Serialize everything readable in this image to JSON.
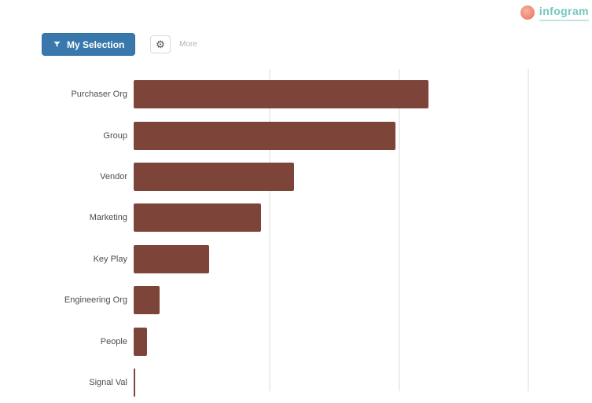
{
  "logo": {
    "text": "infogram",
    "icon": "coral-circle",
    "teal": "#72c8be",
    "coral": "#ef8572"
  },
  "toolbar": {
    "primary_button": {
      "label": "My Selection",
      "icon": "filter-icon",
      "color": "#3878ad"
    },
    "settings_button": {
      "icon": "gear-icon",
      "glyph": "⚙"
    },
    "caption": "More"
  },
  "chart_data": {
    "type": "bar",
    "orientation": "horizontal",
    "title": "",
    "xlabel": "",
    "ylabel": "",
    "categories": [
      "Purchaser Org",
      "Group",
      "Vendor",
      "Marketing",
      "Key Play",
      "Engineering Org",
      "People",
      "Signal Val"
    ],
    "values": [
      45,
      40,
      24.5,
      19.5,
      11.5,
      4,
      2,
      0.3
    ],
    "bar_color": "#7d443a",
    "xlim": [
      0,
      70
    ],
    "gridlines": [
      20,
      40,
      60
    ],
    "gridline_color": "#ededed",
    "grid": true,
    "legend": false,
    "note": "chart is clipped at the bottom edge of the viewport"
  }
}
